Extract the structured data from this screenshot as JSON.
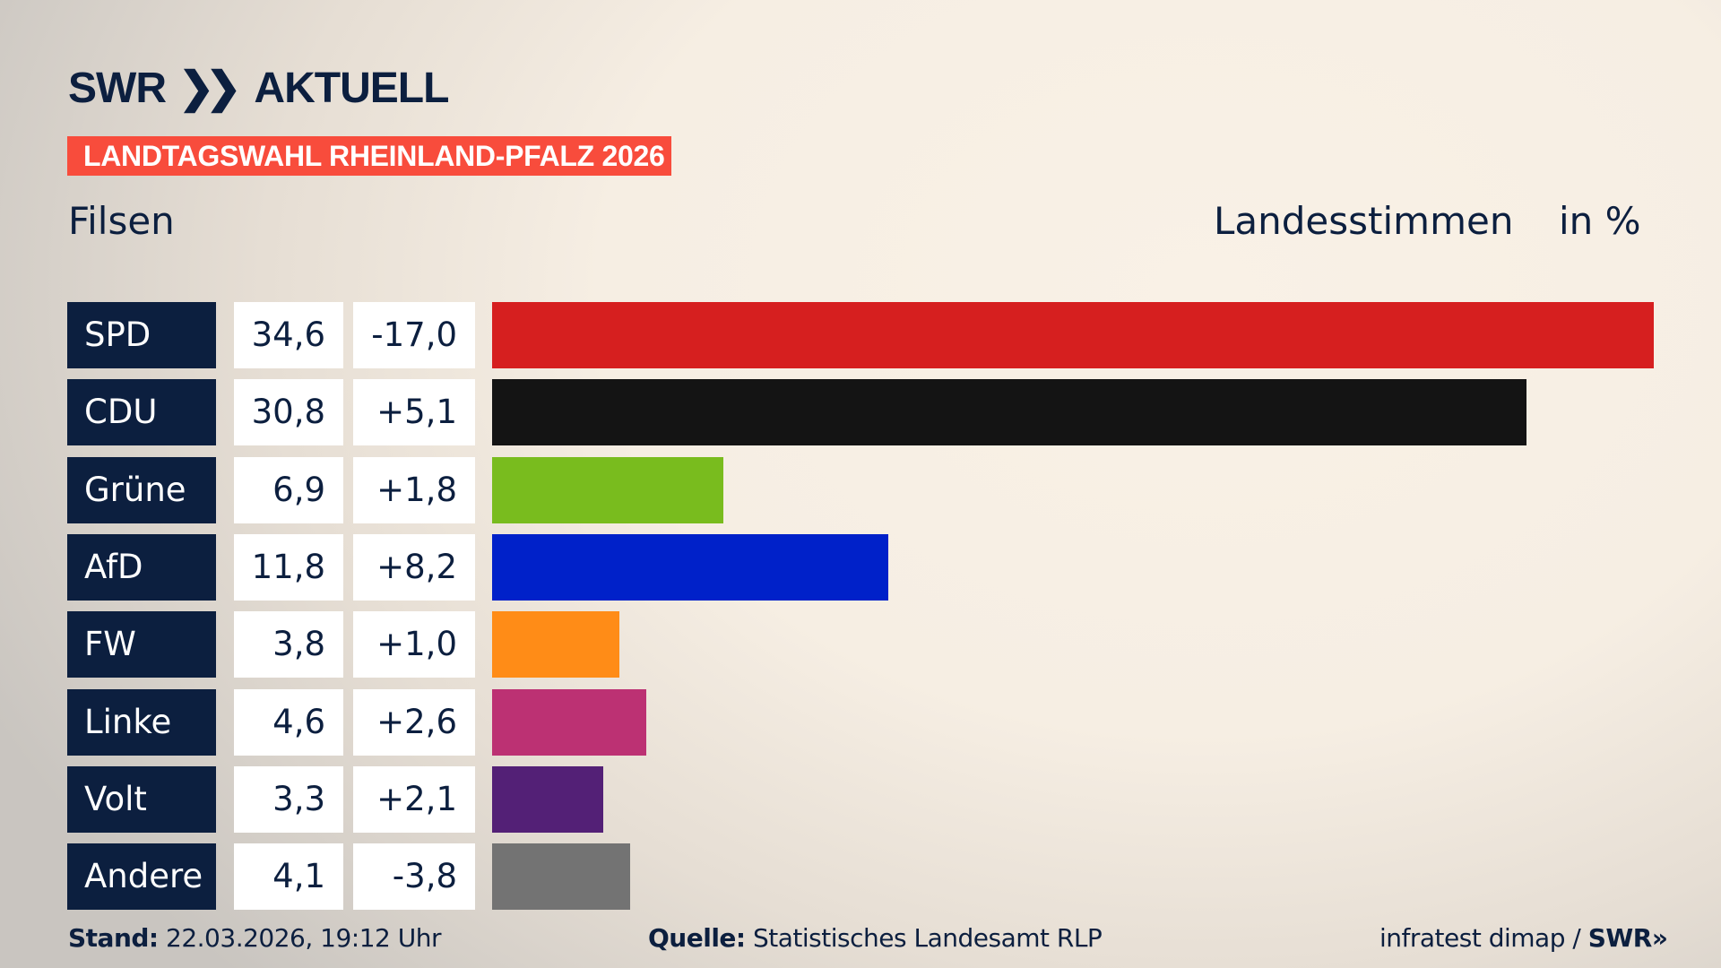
{
  "brand": {
    "logo": "SWR",
    "logo_chevrons": "»",
    "program": "AKTUELL"
  },
  "banner": "LANDTAGSWAHL RHEINLAND-PFALZ 2026",
  "place": "Filsen",
  "header": {
    "measure": "Landesstimmen",
    "unit": "in %"
  },
  "chart_data": {
    "type": "bar",
    "orientation": "horizontal",
    "categories": [
      "SPD",
      "CDU",
      "Grüne",
      "AfD",
      "FW",
      "Linke",
      "Volt",
      "Andere"
    ],
    "values": [
      34.6,
      30.8,
      6.9,
      11.8,
      3.8,
      4.6,
      3.3,
      4.1
    ],
    "value_labels": [
      "34,6",
      "30,8",
      "6,9",
      "11,8",
      "3,8",
      "4,6",
      "3,3",
      "4,1"
    ],
    "diff_labels": [
      "-17,0",
      "+5,1",
      "+1,8",
      "+8,2",
      "+1,0",
      "+2,6",
      "+2,1",
      "-3,8"
    ],
    "colors": [
      "#d61f1f",
      "#141414",
      "#79bc1e",
      "#0021c9",
      "#ff8c17",
      "#bc3173",
      "#532076",
      "#737373"
    ],
    "xlim": [
      0,
      34.6
    ],
    "grid": false
  },
  "footer": {
    "stand_label": "Stand:",
    "stand_value": "22.03.2026, 19:12 Uhr",
    "source_label": "Quelle:",
    "source_value": "Statistisches Landesamt RLP",
    "credit": "infratest dimap /",
    "credit_logo": "SWR»"
  }
}
